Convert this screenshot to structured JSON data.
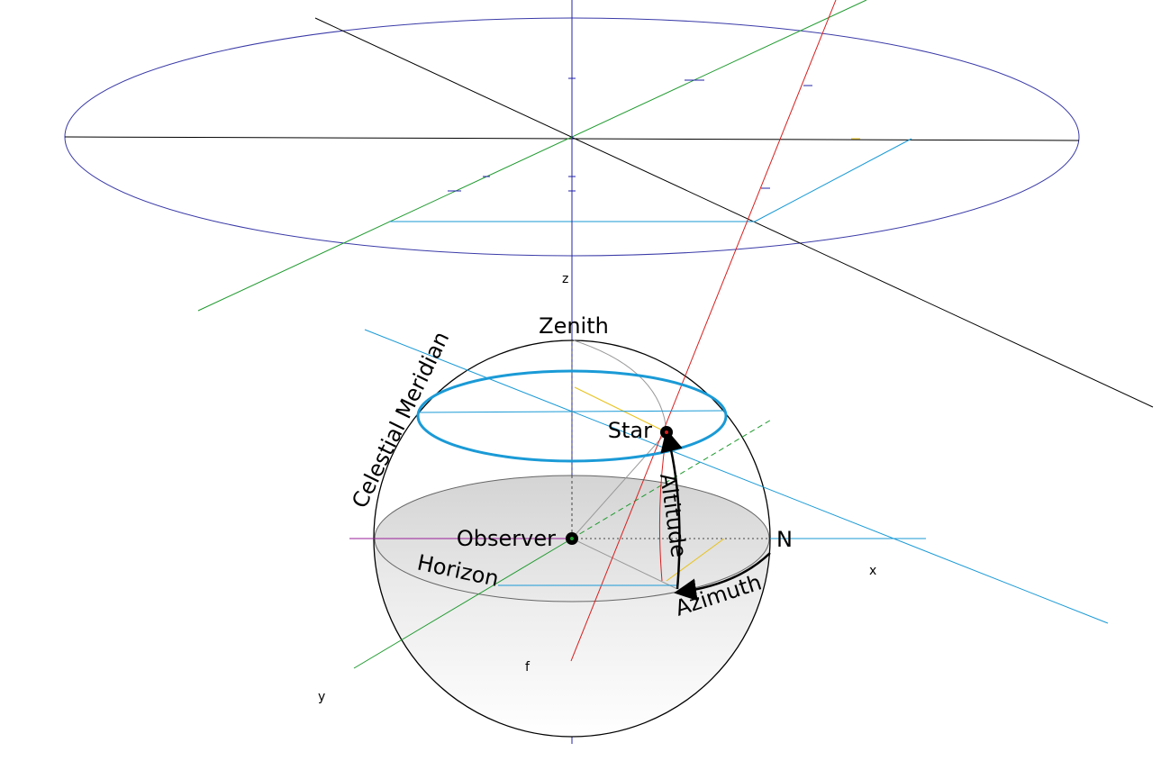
{
  "labels": {
    "zenith": "Zenith",
    "celestial_meridian": "Celestial Meridian",
    "star": "Star",
    "altitude": "Altitude",
    "observer": "Observer",
    "north": "N",
    "horizon": "Horizon",
    "azimuth": "Azimuth"
  },
  "axes": {
    "x": "x",
    "y": "y",
    "z": "z",
    "f": "f"
  },
  "colors": {
    "celestial_sphere": "#000000",
    "horizon_fill": "#dcdcdc",
    "star_path": "#1a9ad6",
    "axis_z": "#2222aa",
    "axis_green": "#1e9a2e",
    "axis_red": "#d81e1e",
    "axis_cyan": "#1a9ad6",
    "axis_black": "#000000",
    "axis_purple": "#9a1e9a",
    "helper_yellow": "#e8c21a"
  }
}
